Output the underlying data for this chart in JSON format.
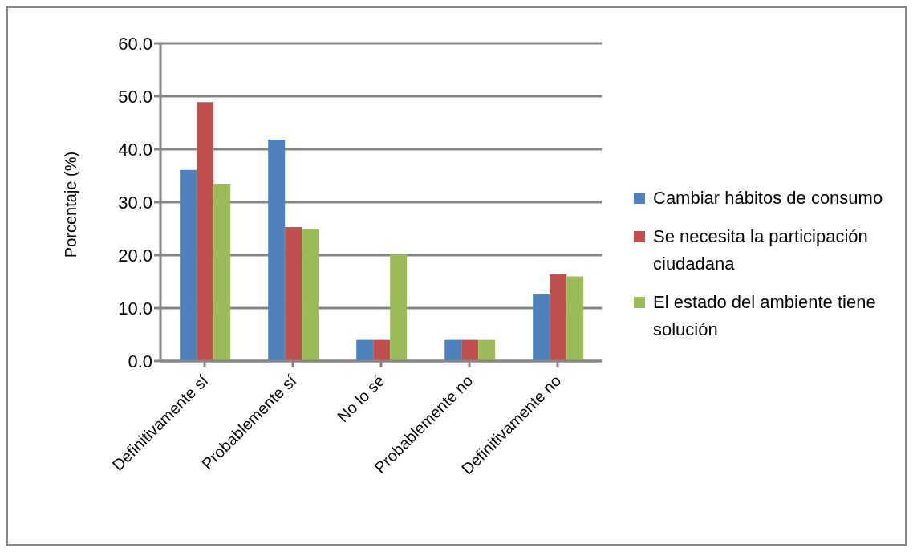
{
  "chart_data": {
    "type": "bar",
    "ylabel": "Porcentaje (%)",
    "categories": [
      "Definitivamente sí",
      "Probablemente sí",
      "No lo sé",
      "Probablemente no",
      "Definitivamente no"
    ],
    "series": [
      {
        "name": "Cambiar hábitos de consumo",
        "color": "#4f81bd",
        "values": [
          36.1,
          41.8,
          4.0,
          4.0,
          12.6
        ]
      },
      {
        "name": "Se necesita la participación ciudadana",
        "color": "#c0504d",
        "values": [
          48.9,
          25.3,
          4.0,
          4.0,
          16.4
        ]
      },
      {
        "name": "El estado del ambiente tiene solución",
        "color": "#9bbb59",
        "values": [
          33.5,
          24.9,
          20.1,
          4.0,
          16.0
        ]
      }
    ],
    "ylim": [
      0,
      60
    ],
    "yticks": [
      {
        "value": 0,
        "label": "0.0"
      },
      {
        "value": 10,
        "label": "10.0"
      },
      {
        "value": 20,
        "label": "20.0"
      },
      {
        "value": 30,
        "label": "30.0"
      },
      {
        "value": 40,
        "label": "40.0"
      },
      {
        "value": 50,
        "label": "50.0"
      },
      {
        "value": 60,
        "label": "60.0"
      }
    ],
    "grid": "y",
    "legend": "right"
  }
}
